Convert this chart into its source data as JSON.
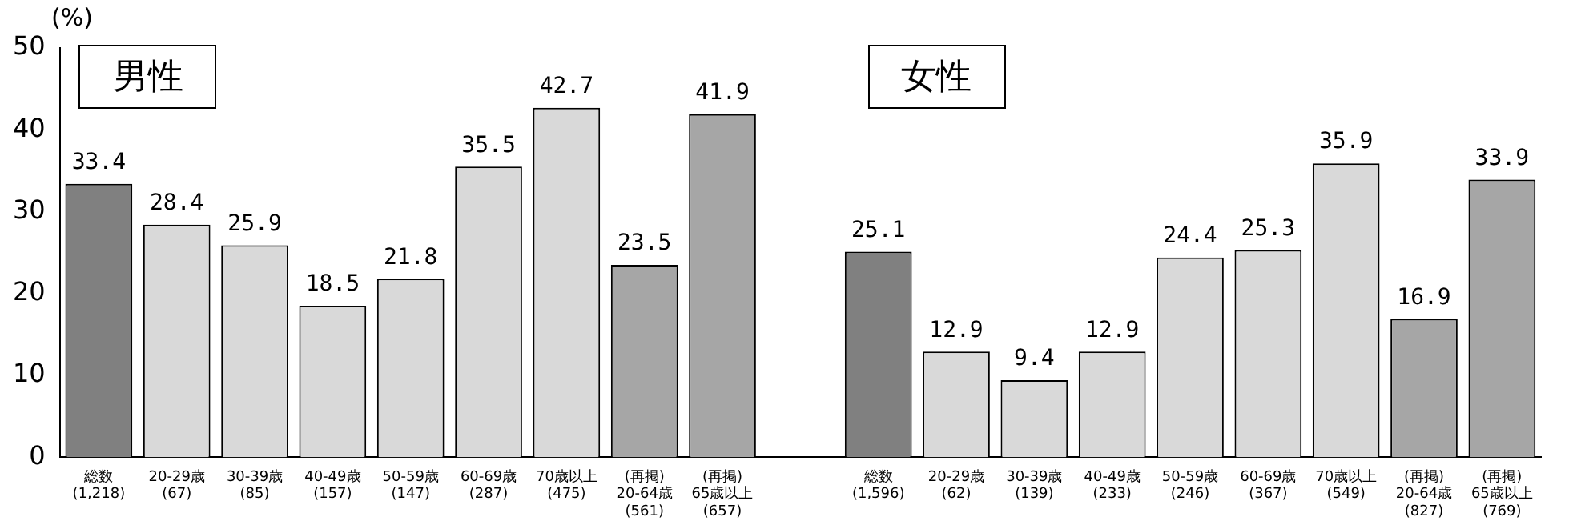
{
  "chart_data": {
    "type": "bar",
    "ylabel": "(%)",
    "categories": [
      "総数\n(1,218)",
      "20-29歳\n(67)",
      "30-39歳\n(85)",
      "40-49歳\n(157)",
      "50-59歳\n(147)",
      "60-69歳\n(287)",
      "70歳以上\n(475)",
      "(再掲)\n20-64歳\n(561)",
      "(再掲)\n65歳以上\n(657)",
      null,
      "総数\n(1,596)",
      "20-29歳\n(62)",
      "30-39歳\n(139)",
      "40-49歳\n(233)",
      "50-59歳\n(246)",
      "60-69歳\n(367)",
      "70歳以上\n(549)",
      "(再掲)\n20-64歳\n(827)",
      "(再掲)\n65歳以上\n(769)"
    ],
    "values": [
      33.4,
      28.4,
      25.9,
      18.5,
      21.8,
      35.5,
      42.7,
      23.5,
      41.9,
      null,
      25.1,
      12.9,
      9.4,
      12.9,
      24.4,
      25.3,
      35.9,
      16.9,
      33.9
    ],
    "colors": [
      "#808080",
      "#d9d9d9",
      "#d9d9d9",
      "#d9d9d9",
      "#d9d9d9",
      "#d9d9d9",
      "#d9d9d9",
      "#a6a6a6",
      "#a6a6a6",
      "#ffffff",
      "#808080",
      "#d9d9d9",
      "#d9d9d9",
      "#d9d9d9",
      "#d9d9d9",
      "#d9d9d9",
      "#d9d9d9",
      "#a6a6a6",
      "#a6a6a6"
    ],
    "ylim": [
      0,
      50
    ],
    "yticks": [
      0,
      10,
      20,
      30,
      40,
      50
    ],
    "grid": false,
    "legend": false,
    "data_labels": true,
    "annotations": [
      "男性",
      "女性"
    ]
  }
}
